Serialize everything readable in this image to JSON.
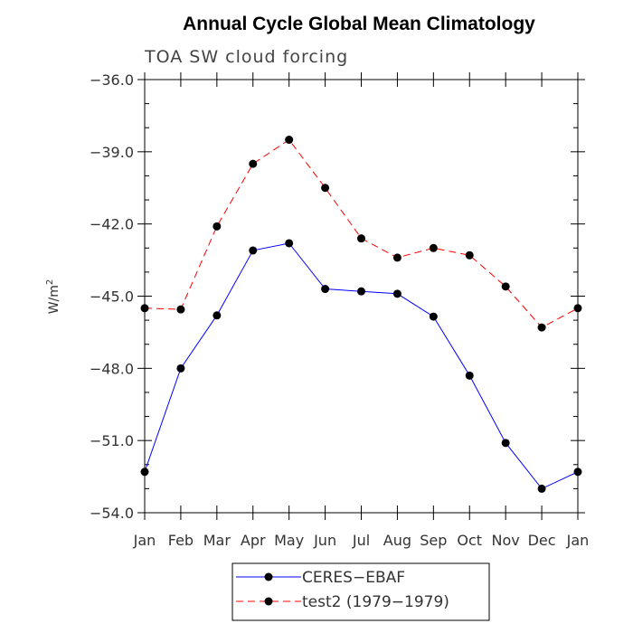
{
  "chart_data": {
    "type": "line",
    "title": "Annual Cycle Global Mean Climatology",
    "subtitle": "TOA SW cloud forcing",
    "ylabel": "W/m",
    "ylabel_superscript": "2",
    "xlabel": "",
    "categories": [
      "Jan",
      "Feb",
      "Mar",
      "Apr",
      "May",
      "Jun",
      "Jul",
      "Aug",
      "Sep",
      "Oct",
      "Nov",
      "Dec",
      "Jan"
    ],
    "ylim": [
      -54.0,
      -36.0
    ],
    "yticks": [
      -36.0,
      -39.0,
      -42.0,
      -45.0,
      -48.0,
      -51.0,
      -54.0
    ],
    "ytick_labels": [
      "−36.0",
      "−39.0",
      "−42.0",
      "−45.0",
      "−48.0",
      "−51.0",
      "−54.0"
    ],
    "grid": false,
    "legend_position": "bottom-center",
    "series": [
      {
        "name": "CERES−EBAF",
        "color": "#0000ff",
        "dash": "solid",
        "values": [
          -52.3,
          -48.0,
          -45.8,
          -43.1,
          -42.8,
          -44.7,
          -44.8,
          -44.9,
          -45.85,
          -48.3,
          -51.1,
          -53.0,
          -52.3
        ]
      },
      {
        "name": "test2 (1979−1979)",
        "color": "#ff0000",
        "dash": "dashed",
        "values": [
          -45.5,
          -45.55,
          -42.1,
          -39.5,
          -38.5,
          -40.5,
          -42.6,
          -43.4,
          -43.0,
          -43.3,
          -44.6,
          -46.3,
          -45.5
        ]
      }
    ]
  }
}
